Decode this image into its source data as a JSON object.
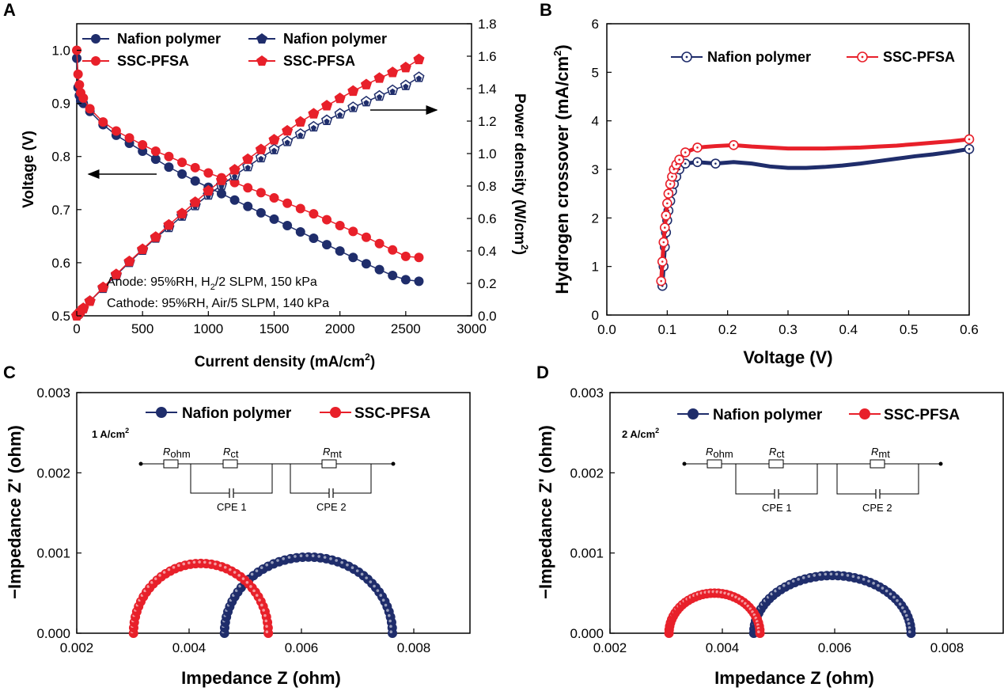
{
  "colors": {
    "nafion": "#1f2d6b",
    "ssc": "#e8202a",
    "axis": "#000000"
  },
  "panels": {
    "A": "A",
    "B": "B",
    "C": "C",
    "D": "D"
  },
  "chart_data": [
    {
      "panel": "A",
      "type": "line",
      "xlabel": "Current density (mA/cm",
      "xlabel_sup": "2",
      "xlabel_end": ")",
      "ylabel": "Voltage (V)",
      "y2label": "Power density (W/cm",
      "y2label_sup": "2",
      "y2label_end": ")",
      "xlim": [
        0,
        3000
      ],
      "ylim": [
        0.5,
        1.05
      ],
      "y2lim": [
        0,
        1.8
      ],
      "xticks": [
        "0",
        "500",
        "1000",
        "1500",
        "2000",
        "2500",
        "3000"
      ],
      "yticks": [
        "0.5",
        "0.6",
        "0.7",
        "0.8",
        "0.9",
        "1.0"
      ],
      "y2ticks": [
        "0.0",
        "0.2",
        "0.4",
        "0.6",
        "0.8",
        "1.0",
        "1.2",
        "1.4",
        "1.6",
        "1.8"
      ],
      "legend": [
        "Nafion polymer",
        "Nafion polymer",
        "SSC-PFSA",
        "SSC-PFSA"
      ],
      "annotations": {
        "anode_pre": "Anode: 95%RH, H",
        "anode_sub": "2",
        "anode_post": "/2 SLPM, 150 kPa",
        "cathode": "Cathode: 95%RH, Air/5 SLPM, 140 kPa"
      },
      "x": [
        0,
        10,
        20,
        30,
        50,
        100,
        200,
        300,
        400,
        500,
        600,
        700,
        800,
        900,
        1000,
        1100,
        1200,
        1300,
        1400,
        1500,
        1600,
        1700,
        1800,
        1900,
        2000,
        2100,
        2200,
        2300,
        2400,
        2500,
        2600
      ],
      "series": [
        {
          "name": "Nafion polymer",
          "kind": "voltage",
          "values": [
            0.985,
            0.93,
            0.915,
            0.905,
            0.9,
            0.885,
            0.86,
            0.84,
            0.825,
            0.81,
            0.795,
            0.78,
            0.767,
            0.754,
            0.742,
            0.73,
            0.718,
            0.706,
            0.694,
            0.682,
            0.67,
            0.658,
            0.646,
            0.634,
            0.622,
            0.61,
            0.598,
            0.587,
            0.576,
            0.568,
            0.565
          ]
        },
        {
          "name": "SSC-PFSA",
          "kind": "voltage",
          "values": [
            1.0,
            0.955,
            0.935,
            0.92,
            0.91,
            0.89,
            0.865,
            0.848,
            0.835,
            0.822,
            0.81,
            0.8,
            0.789,
            0.779,
            0.769,
            0.76,
            0.751,
            0.741,
            0.732,
            0.722,
            0.712,
            0.702,
            0.692,
            0.681,
            0.67,
            0.659,
            0.648,
            0.636,
            0.624,
            0.612,
            0.61
          ]
        },
        {
          "name": "Nafion polymer",
          "kind": "power",
          "values": [
            0.0,
            0.01,
            0.018,
            0.027,
            0.045,
            0.09,
            0.17,
            0.25,
            0.33,
            0.405,
            0.48,
            0.545,
            0.615,
            0.68,
            0.745,
            0.805,
            0.865,
            0.92,
            0.975,
            1.025,
            1.075,
            1.12,
            1.165,
            1.205,
            1.245,
            1.285,
            1.32,
            1.355,
            1.39,
            1.42,
            1.47
          ]
        },
        {
          "name": "SSC-PFSA",
          "kind": "power",
          "values": [
            0.0,
            0.01,
            0.019,
            0.028,
            0.046,
            0.09,
            0.175,
            0.255,
            0.335,
            0.41,
            0.485,
            0.56,
            0.63,
            0.7,
            0.77,
            0.835,
            0.9,
            0.965,
            1.025,
            1.085,
            1.14,
            1.195,
            1.245,
            1.295,
            1.34,
            1.385,
            1.425,
            1.465,
            1.5,
            1.53,
            1.58
          ]
        }
      ]
    },
    {
      "panel": "B",
      "type": "line",
      "xlabel": "Voltage (V)",
      "ylabel": "Hydrogen crossover (mA/cm",
      "ylabel_sup": "2",
      "ylabel_end": ")",
      "xlim": [
        0.0,
        0.6
      ],
      "ylim": [
        0,
        6
      ],
      "xticks": [
        "0.0",
        "0.1",
        "0.2",
        "0.3",
        "0.4",
        "0.5",
        "0.6"
      ],
      "yticks": [
        "0",
        "1",
        "2",
        "3",
        "4",
        "5",
        "6"
      ],
      "legend": [
        "Nafion polymer",
        "SSC-PFSA"
      ],
      "series": [
        {
          "name": "Nafion polymer",
          "x": [
            0.092,
            0.094,
            0.096,
            0.098,
            0.1,
            0.102,
            0.105,
            0.108,
            0.111,
            0.115,
            0.12,
            0.13,
            0.15,
            0.18,
            0.21,
            0.24,
            0.27,
            0.3,
            0.33,
            0.36,
            0.39,
            0.42,
            0.45,
            0.48,
            0.51,
            0.54,
            0.57,
            0.6
          ],
          "y": [
            0.6,
            1.0,
            1.4,
            1.7,
            1.95,
            2.15,
            2.35,
            2.55,
            2.7,
            2.85,
            3.0,
            3.12,
            3.15,
            3.12,
            3.15,
            3.12,
            3.06,
            3.03,
            3.03,
            3.05,
            3.08,
            3.12,
            3.17,
            3.22,
            3.27,
            3.31,
            3.36,
            3.42
          ]
        },
        {
          "name": "SSC-PFSA",
          "x": [
            0.09,
            0.092,
            0.094,
            0.096,
            0.098,
            0.1,
            0.102,
            0.105,
            0.108,
            0.111,
            0.115,
            0.12,
            0.13,
            0.15,
            0.18,
            0.21,
            0.24,
            0.27,
            0.3,
            0.33,
            0.36,
            0.39,
            0.42,
            0.45,
            0.48,
            0.51,
            0.54,
            0.57,
            0.6
          ],
          "y": [
            0.7,
            1.1,
            1.5,
            1.8,
            2.05,
            2.3,
            2.5,
            2.7,
            2.85,
            3.0,
            3.1,
            3.2,
            3.35,
            3.45,
            3.48,
            3.5,
            3.47,
            3.45,
            3.43,
            3.43,
            3.43,
            3.44,
            3.45,
            3.47,
            3.49,
            3.52,
            3.55,
            3.58,
            3.62
          ]
        }
      ]
    },
    {
      "panel": "C",
      "type": "scatter",
      "xlabel": "Impedance Z (ohm)",
      "ylabel": "−Impedance Z' (ohm)",
      "xlim": [
        0.002,
        0.009
      ],
      "ylim": [
        0,
        0.003
      ],
      "xticks": [
        "0.002",
        "0.004",
        "0.006",
        "0.008"
      ],
      "yticks": [
        "0.000",
        "0.001",
        "0.002",
        "0.003"
      ],
      "legend": [
        "Nafion polymer",
        "SSC-PFSA"
      ],
      "condition_pre": "1 A/cm",
      "condition_sup": "2",
      "circuit": {
        "r1": "R",
        "r1_sub": "ohm",
        "r2": "R",
        "r2_sub": "ct",
        "r3": "R",
        "r3_sub": "mt",
        "c1": "CPE 1",
        "c2": "CPE 2"
      },
      "series": [
        {
          "name": "Nafion polymer",
          "arc": {
            "start": 0.00463,
            "end": 0.00762,
            "peak": 0.00095
          },
          "points": 44
        },
        {
          "name": "SSC-PFSA",
          "arc": {
            "start": 0.00301,
            "end": 0.00541,
            "peak": 0.00087
          },
          "points": 40
        }
      ]
    },
    {
      "panel": "D",
      "type": "scatter",
      "xlabel": "Impedance Z (ohm)",
      "ylabel": "−Impedance Z' (ohm)",
      "xlim": [
        0.002,
        0.009
      ],
      "ylim": [
        0,
        0.003
      ],
      "xticks": [
        "0.002",
        "0.004",
        "0.006",
        "0.008"
      ],
      "yticks": [
        "0.000",
        "0.001",
        "0.002",
        "0.003"
      ],
      "legend": [
        "Nafion polymer",
        "SSC-PFSA"
      ],
      "condition_pre": "2 A/cm",
      "condition_sup": "2",
      "circuit": {
        "r1": "R",
        "r1_sub": "ohm",
        "r2": "R",
        "r2_sub": "ct",
        "r3": "R",
        "r3_sub": "mt",
        "c1": "CPE 1",
        "c2": "CPE 2"
      },
      "series": [
        {
          "name": "Nafion polymer",
          "arc": {
            "start": 0.00456,
            "end": 0.00736,
            "peak": 0.00072
          },
          "points": 44
        },
        {
          "name": "SSC-PFSA",
          "arc": {
            "start": 0.00305,
            "end": 0.00467,
            "peak": 0.0005
          },
          "points": 36
        }
      ]
    }
  ]
}
